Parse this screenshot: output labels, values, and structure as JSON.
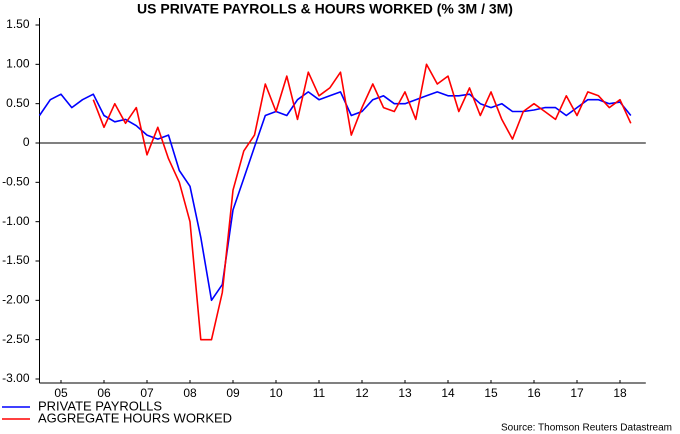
{
  "chart_data": {
    "type": "line",
    "title": "US PRIVATE PAYROLLS & HOURS WORKED (% 3M / 3M)",
    "source": "Source: Thomson Reuters Datastream",
    "x": [
      2005.0,
      2005.25,
      2005.5,
      2005.75,
      2006.0,
      2006.25,
      2006.5,
      2006.75,
      2007.0,
      2007.25,
      2007.5,
      2007.75,
      2008.0,
      2008.25,
      2008.5,
      2008.75,
      2009.0,
      2009.25,
      2009.5,
      2009.75,
      2010.0,
      2010.25,
      2010.5,
      2010.75,
      2011.0,
      2011.25,
      2011.5,
      2011.75,
      2012.0,
      2012.25,
      2012.5,
      2012.75,
      2013.0,
      2013.25,
      2013.5,
      2013.75,
      2014.0,
      2014.25,
      2014.5,
      2014.75,
      2015.0,
      2015.25,
      2015.5,
      2015.75,
      2016.0,
      2016.25,
      2016.5,
      2016.75,
      2017.0,
      2017.25,
      2017.5,
      2017.75,
      2018.0,
      2018.25,
      2018.5,
      2018.75
    ],
    "series": [
      {
        "name": "PRIVATE PAYROLLS",
        "color": "#0000ff",
        "values": [
          0.35,
          0.55,
          0.62,
          0.45,
          0.55,
          0.62,
          0.35,
          0.27,
          0.3,
          0.22,
          0.1,
          0.05,
          0.1,
          -0.35,
          -0.55,
          -1.2,
          -2.0,
          -1.8,
          -0.85,
          -0.45,
          -0.05,
          0.35,
          0.4,
          0.35,
          0.55,
          0.65,
          0.55,
          0.6,
          0.65,
          0.35,
          0.4,
          0.55,
          0.6,
          0.5,
          0.5,
          0.55,
          0.6,
          0.65,
          0.6,
          0.6,
          0.62,
          0.5,
          0.45,
          0.5,
          0.4,
          0.4,
          0.42,
          0.45,
          0.45,
          0.35,
          0.45,
          0.55,
          0.55,
          0.5,
          0.52,
          0.35
        ]
      },
      {
        "name": "AGGREGATE HOURS WORKED",
        "color": "#ff0000",
        "values": [
          null,
          null,
          null,
          null,
          null,
          0.55,
          0.2,
          0.5,
          0.25,
          0.45,
          -0.15,
          0.2,
          -0.2,
          -0.5,
          -1.0,
          -2.5,
          -2.5,
          -1.9,
          -0.6,
          -0.1,
          0.1,
          0.75,
          0.4,
          0.85,
          0.3,
          0.9,
          0.6,
          0.7,
          0.9,
          0.1,
          0.45,
          0.75,
          0.45,
          0.4,
          0.65,
          0.3,
          1.0,
          0.75,
          0.85,
          0.4,
          0.7,
          0.35,
          0.65,
          0.3,
          0.05,
          0.4,
          0.5,
          0.4,
          0.3,
          0.6,
          0.35,
          0.65,
          0.6,
          0.45,
          0.55,
          0.25
        ]
      }
    ],
    "xlim": [
      2005.0,
      2019.1
    ],
    "xticks": [
      {
        "value": 2005.5,
        "label": "05"
      },
      {
        "value": 2006.5,
        "label": "06"
      },
      {
        "value": 2007.5,
        "label": "07"
      },
      {
        "value": 2008.5,
        "label": "08"
      },
      {
        "value": 2009.5,
        "label": "09"
      },
      {
        "value": 2010.5,
        "label": "10"
      },
      {
        "value": 2011.5,
        "label": "11"
      },
      {
        "value": 2012.5,
        "label": "12"
      },
      {
        "value": 2013.5,
        "label": "13"
      },
      {
        "value": 2014.5,
        "label": "14"
      },
      {
        "value": 2015.5,
        "label": "15"
      },
      {
        "value": 2016.5,
        "label": "16"
      },
      {
        "value": 2017.5,
        "label": "17"
      },
      {
        "value": 2018.5,
        "label": "18"
      }
    ],
    "ylim": [
      -3.0,
      1.5
    ],
    "yticks": [
      {
        "value": 1.5,
        "label": "1.50"
      },
      {
        "value": 1.0,
        "label": "1.00"
      },
      {
        "value": 0.5,
        "label": "0.50"
      },
      0,
      {
        "value": -0.5,
        "label": "-0.50"
      },
      {
        "value": -1.0,
        "label": "-1.00"
      },
      {
        "value": -1.5,
        "label": "-1.50"
      },
      {
        "value": -2.0,
        "label": "-2.00"
      },
      {
        "value": -2.5,
        "label": "-2.50"
      },
      {
        "value": -3.0,
        "label": "-3.00"
      }
    ],
    "grid": false,
    "legend": "bottom-left"
  }
}
